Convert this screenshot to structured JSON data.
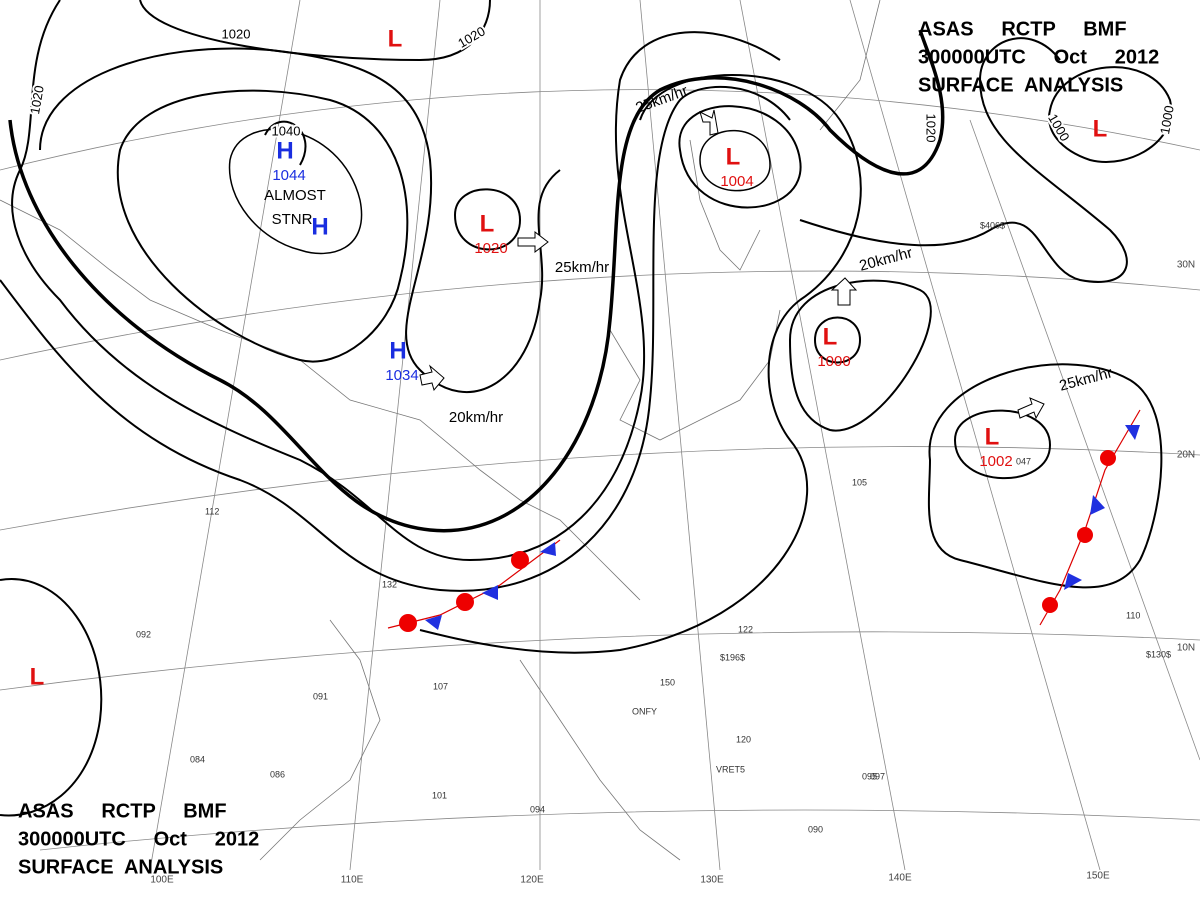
{
  "header": {
    "lines": [
      "ASAS     RCTP     BMF",
      "300000UTC     Oct     2012",
      "SURFACE  ANALYSIS"
    ]
  },
  "footer": {
    "lines": [
      "ASAS     RCTP     BMF",
      "300000UTC     Oct     2012",
      "SURFACE  ANALYSIS"
    ]
  },
  "centers": [
    {
      "symbol": "L"
    },
    {
      "symbol": "H",
      "pressure": 1044
    },
    {
      "symbol": "H"
    },
    {
      "symbol": "L",
      "pressure": 1020
    },
    {
      "symbol": "H",
      "pressure": 1034
    },
    {
      "symbol": "L",
      "pressure": 1004
    },
    {
      "symbol": "L"
    },
    {
      "symbol": "L",
      "pressure": 1000
    },
    {
      "symbol": "L",
      "pressure": 1002
    },
    {
      "symbol": "L"
    }
  ],
  "note": [
    "ALMOST",
    "STNR"
  ],
  "isobar_labels": [
    1020,
    1020,
    1020,
    1040,
    1020,
    1000,
    1000
  ],
  "motion_labels": [
    "25km/hr",
    "25km/hr",
    "20km/hr",
    "20km/hr",
    "25km/hr"
  ],
  "latitude_labels": [
    "30N",
    "20N",
    "10N"
  ],
  "longitude_labels": [
    "100E",
    "110E",
    "120E",
    "130E",
    "140E",
    "150E"
  ],
  "stations": [
    "132",
    "092",
    "112",
    "107",
    "091",
    "084",
    "086",
    "101",
    "094",
    "122",
    "150",
    "120",
    "097",
    "095",
    "090",
    "110",
    "105",
    "047",
    "$196$",
    "$130$",
    "$406$",
    "ONFY",
    "VRET5"
  ]
}
